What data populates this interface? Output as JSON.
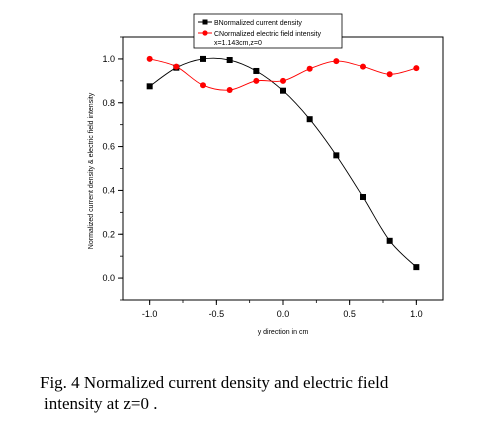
{
  "chart_data": {
    "type": "line",
    "xlabel": "y direction in cm",
    "ylabel": "Normalized current density & electric field intensity",
    "xlim": [
      -1.2,
      1.2
    ],
    "ylim": [
      -0.1,
      1.1
    ],
    "xticks": [
      -1.0,
      -0.5,
      0.0,
      0.5,
      1.0
    ],
    "xtick_labels": [
      "-1.0",
      "-0.5",
      "0.0",
      "0.5",
      "1.0"
    ],
    "yticks": [
      0.0,
      0.2,
      0.4,
      0.6,
      0.8,
      1.0
    ],
    "ytick_labels": [
      "0.0",
      "0.2",
      "0.4",
      "0.6",
      "0.8",
      "1.0"
    ],
    "grid": false,
    "legend": {
      "placement": "top-center",
      "note": "x=1.143cm,z=0"
    },
    "x": [
      -1.0,
      -0.8,
      -0.6,
      -0.4,
      -0.2,
      0.0,
      0.2,
      0.4,
      0.6,
      0.8,
      1.0
    ],
    "series": [
      {
        "name": "BNormalized current density",
        "color": "#000000",
        "marker": "square",
        "values": [
          0.875,
          0.96,
          1.0,
          0.995,
          0.945,
          0.855,
          0.725,
          0.56,
          0.37,
          0.17,
          0.05
        ]
      },
      {
        "name": "CNormalized electric field intensity",
        "color": "#ff0000",
        "marker": "circle",
        "values": [
          1.0,
          0.965,
          0.88,
          0.858,
          0.9,
          0.9,
          0.955,
          0.99,
          0.965,
          0.93,
          0.958
        ]
      }
    ]
  },
  "caption": {
    "line1": "Fig. 4 Normalized current density and electric field",
    "line2": "intensity at z=0 ."
  }
}
